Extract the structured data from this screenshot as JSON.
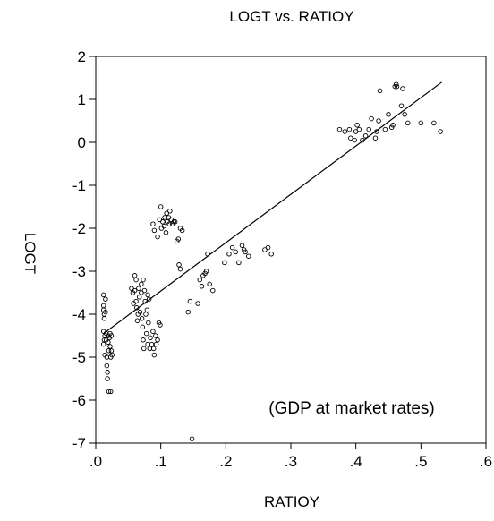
{
  "chart_data": {
    "type": "scatter",
    "title": "LOGT vs. RATIOY",
    "xlabel": "RATIOY",
    "ylabel": "LOGT",
    "xlim": [
      0.0,
      0.6
    ],
    "ylim": [
      -7,
      2
    ],
    "x_ticks": [
      0.0,
      0.1,
      0.2,
      0.3,
      0.4,
      0.5,
      0.6
    ],
    "x_tick_labels": [
      ".0",
      ".1",
      ".2",
      ".3",
      ".4",
      ".5",
      ".6"
    ],
    "y_ticks": [
      2,
      1,
      0,
      -1,
      -2,
      -3,
      -4,
      -5,
      -6,
      -7
    ],
    "y_tick_labels": [
      "2",
      "1",
      "0",
      "-1",
      "-2",
      "-3",
      "-4",
      "-5",
      "-6",
      "-7"
    ],
    "grid": false,
    "annotation": "(GDP at market rates)",
    "fit_line": {
      "x": [
        0.012,
        0.532
      ],
      "y": [
        -4.45,
        1.4
      ]
    },
    "series": [
      {
        "marker": "hollow-circle",
        "points": [
          [
            0.012,
            -3.55
          ],
          [
            0.012,
            -3.8
          ],
          [
            0.012,
            -3.9
          ],
          [
            0.013,
            -4.0
          ],
          [
            0.013,
            -4.1
          ],
          [
            0.012,
            -4.4
          ],
          [
            0.014,
            -4.5
          ],
          [
            0.013,
            -4.6
          ],
          [
            0.012,
            -4.7
          ],
          [
            0.014,
            -4.95
          ],
          [
            0.015,
            -3.65
          ],
          [
            0.015,
            -3.95
          ],
          [
            0.016,
            -4.45
          ],
          [
            0.016,
            -4.6
          ],
          [
            0.017,
            -5.0
          ],
          [
            0.017,
            -5.2
          ],
          [
            0.018,
            -5.35
          ],
          [
            0.018,
            -5.5
          ],
          [
            0.019,
            -4.5
          ],
          [
            0.019,
            -4.65
          ],
          [
            0.02,
            -5.8
          ],
          [
            0.02,
            -4.85
          ],
          [
            0.021,
            -4.55
          ],
          [
            0.022,
            -4.45
          ],
          [
            0.022,
            -4.75
          ],
          [
            0.023,
            -5.0
          ],
          [
            0.024,
            -4.5
          ],
          [
            0.024,
            -4.85
          ],
          [
            0.025,
            -4.95
          ],
          [
            0.023,
            -5.8
          ],
          [
            0.055,
            -3.4
          ],
          [
            0.057,
            -3.5
          ],
          [
            0.058,
            -3.75
          ],
          [
            0.06,
            -3.1
          ],
          [
            0.06,
            -3.45
          ],
          [
            0.062,
            -3.2
          ],
          [
            0.062,
            -3.7
          ],
          [
            0.063,
            -3.85
          ],
          [
            0.065,
            -4.0
          ],
          [
            0.064,
            -4.15
          ],
          [
            0.066,
            -3.4
          ],
          [
            0.067,
            -3.6
          ],
          [
            0.068,
            -3.95
          ],
          [
            0.07,
            -3.3
          ],
          [
            0.07,
            -3.5
          ],
          [
            0.071,
            -4.1
          ],
          [
            0.072,
            -4.3
          ],
          [
            0.073,
            -3.2
          ],
          [
            0.073,
            -4.6
          ],
          [
            0.074,
            -4.8
          ],
          [
            0.075,
            -3.45
          ],
          [
            0.076,
            -3.7
          ],
          [
            0.077,
            -4.0
          ],
          [
            0.078,
            -4.45
          ],
          [
            0.079,
            -3.9
          ],
          [
            0.08,
            -3.55
          ],
          [
            0.08,
            -4.7
          ],
          [
            0.081,
            -4.2
          ],
          [
            0.082,
            -3.65
          ],
          [
            0.083,
            -4.8
          ],
          [
            0.084,
            -4.55
          ],
          [
            0.086,
            -4.7
          ],
          [
            0.088,
            -4.4
          ],
          [
            0.089,
            -4.8
          ],
          [
            0.09,
            -4.95
          ],
          [
            0.092,
            -4.5
          ],
          [
            0.093,
            -4.7
          ],
          [
            0.095,
            -4.6
          ],
          [
            0.097,
            -4.2
          ],
          [
            0.099,
            -4.25
          ],
          [
            0.088,
            -1.9
          ],
          [
            0.09,
            -2.05
          ],
          [
            0.095,
            -2.2
          ],
          [
            0.098,
            -1.8
          ],
          [
            0.1,
            -1.5
          ],
          [
            0.101,
            -2.0
          ],
          [
            0.103,
            -1.85
          ],
          [
            0.105,
            -1.95
          ],
          [
            0.106,
            -1.75
          ],
          [
            0.108,
            -2.1
          ],
          [
            0.109,
            -1.65
          ],
          [
            0.11,
            -1.85
          ],
          [
            0.112,
            -1.75
          ],
          [
            0.113,
            -1.9
          ],
          [
            0.114,
            -1.6
          ],
          [
            0.116,
            -1.8
          ],
          [
            0.118,
            -1.9
          ],
          [
            0.12,
            -1.85
          ],
          [
            0.122,
            -1.85
          ],
          [
            0.125,
            -2.3
          ],
          [
            0.127,
            -2.25
          ],
          [
            0.13,
            -2.0
          ],
          [
            0.128,
            -2.85
          ],
          [
            0.13,
            -2.95
          ],
          [
            0.133,
            -2.05
          ],
          [
            0.142,
            -3.95
          ],
          [
            0.145,
            -3.7
          ],
          [
            0.148,
            -6.9
          ],
          [
            0.157,
            -3.75
          ],
          [
            0.16,
            -3.2
          ],
          [
            0.163,
            -3.35
          ],
          [
            0.165,
            -3.1
          ],
          [
            0.168,
            -3.05
          ],
          [
            0.17,
            -3.0
          ],
          [
            0.172,
            -2.6
          ],
          [
            0.175,
            -3.3
          ],
          [
            0.18,
            -3.45
          ],
          [
            0.198,
            -2.8
          ],
          [
            0.205,
            -2.6
          ],
          [
            0.21,
            -2.45
          ],
          [
            0.215,
            -2.55
          ],
          [
            0.22,
            -2.8
          ],
          [
            0.225,
            -2.4
          ],
          [
            0.228,
            -2.5
          ],
          [
            0.23,
            -2.55
          ],
          [
            0.235,
            -2.65
          ],
          [
            0.26,
            -2.5
          ],
          [
            0.265,
            -2.45
          ],
          [
            0.27,
            -2.6
          ],
          [
            0.375,
            0.3
          ],
          [
            0.383,
            0.25
          ],
          [
            0.39,
            0.3
          ],
          [
            0.392,
            0.1
          ],
          [
            0.398,
            0.05
          ],
          [
            0.4,
            0.25
          ],
          [
            0.402,
            0.4
          ],
          [
            0.405,
            0.3
          ],
          [
            0.41,
            0.05
          ],
          [
            0.415,
            0.15
          ],
          [
            0.42,
            0.3
          ],
          [
            0.424,
            0.55
          ],
          [
            0.43,
            0.1
          ],
          [
            0.432,
            0.25
          ],
          [
            0.435,
            0.5
          ],
          [
            0.437,
            1.2
          ],
          [
            0.445,
            0.3
          ],
          [
            0.45,
            0.65
          ],
          [
            0.455,
            0.35
          ],
          [
            0.457,
            0.4
          ],
          [
            0.46,
            1.3
          ],
          [
            0.462,
            1.35
          ],
          [
            0.463,
            1.3
          ],
          [
            0.47,
            0.85
          ],
          [
            0.472,
            1.25
          ],
          [
            0.475,
            0.65
          ],
          [
            0.48,
            0.45
          ],
          [
            0.5,
            0.45
          ],
          [
            0.52,
            0.45
          ],
          [
            0.53,
            0.25
          ]
        ]
      }
    ]
  }
}
